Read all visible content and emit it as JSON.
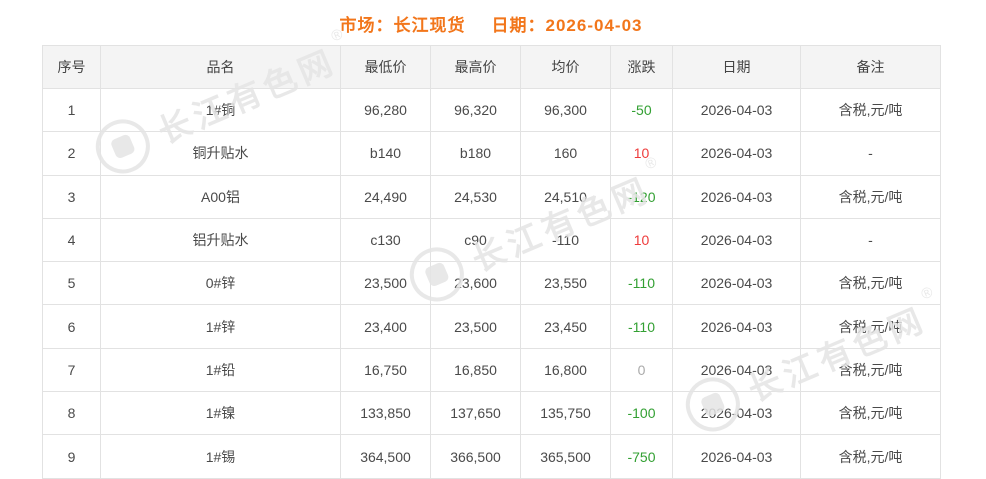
{
  "page": {
    "title": {
      "market_label": "市场：",
      "market_value": "长江现货",
      "date_label": "日期：",
      "date_value": "2026-04-03"
    }
  },
  "table": {
    "columns": [
      "序号",
      "品名",
      "最低价",
      "最高价",
      "均价",
      "涨跌",
      "日期",
      "备注"
    ],
    "rows": [
      {
        "no": "1",
        "name": "1#铜",
        "low": "96,280",
        "high": "96,320",
        "avg": "96,300",
        "change": "-50",
        "change_color": "green",
        "date": "2026-04-03",
        "remark": "含税,元/吨"
      },
      {
        "no": "2",
        "name": "铜升贴水",
        "low": "b140",
        "high": "b180",
        "avg": "160",
        "change": "10",
        "change_color": "red",
        "date": "2026-04-03",
        "remark": "-"
      },
      {
        "no": "3",
        "name": "A00铝",
        "low": "24,490",
        "high": "24,530",
        "avg": "24,510",
        "change": "-120",
        "change_color": "green",
        "date": "2026-04-03",
        "remark": "含税,元/吨"
      },
      {
        "no": "4",
        "name": "铝升贴水",
        "low": "c130",
        "high": "c90",
        "avg": "-110",
        "change": "10",
        "change_color": "red",
        "date": "2026-04-03",
        "remark": "-"
      },
      {
        "no": "5",
        "name": "0#锌",
        "low": "23,500",
        "high": "23,600",
        "avg": "23,550",
        "change": "-110",
        "change_color": "green",
        "date": "2026-04-03",
        "remark": "含税,元/吨"
      },
      {
        "no": "6",
        "name": "1#锌",
        "low": "23,400",
        "high": "23,500",
        "avg": "23,450",
        "change": "-110",
        "change_color": "green",
        "date": "2026-04-03",
        "remark": "含税,元/吨"
      },
      {
        "no": "7",
        "name": "1#铅",
        "low": "16,750",
        "high": "16,850",
        "avg": "16,800",
        "change": "0",
        "change_color": "gray",
        "date": "2026-04-03",
        "remark": "含税,元/吨"
      },
      {
        "no": "8",
        "name": "1#镍",
        "low": "133,850",
        "high": "137,650",
        "avg": "135,750",
        "change": "-100",
        "change_color": "green",
        "date": "2026-04-03",
        "remark": "含税,元/吨"
      },
      {
        "no": "9",
        "name": "1#锡",
        "low": "364,500",
        "high": "366,500",
        "avg": "365,500",
        "change": "-750",
        "change_color": "green",
        "date": "2026-04-03",
        "remark": "含税,元/吨"
      }
    ]
  },
  "watermark": {
    "text": "长江有色网",
    "reg_mark": "®"
  },
  "colors": {
    "accent_orange": "#f2761b",
    "up_red": "#ee3b3b",
    "down_green": "#33a033",
    "zero_gray": "#aaaaaa",
    "header_bg": "#f4f4f4",
    "border": "#e2e2e2"
  }
}
